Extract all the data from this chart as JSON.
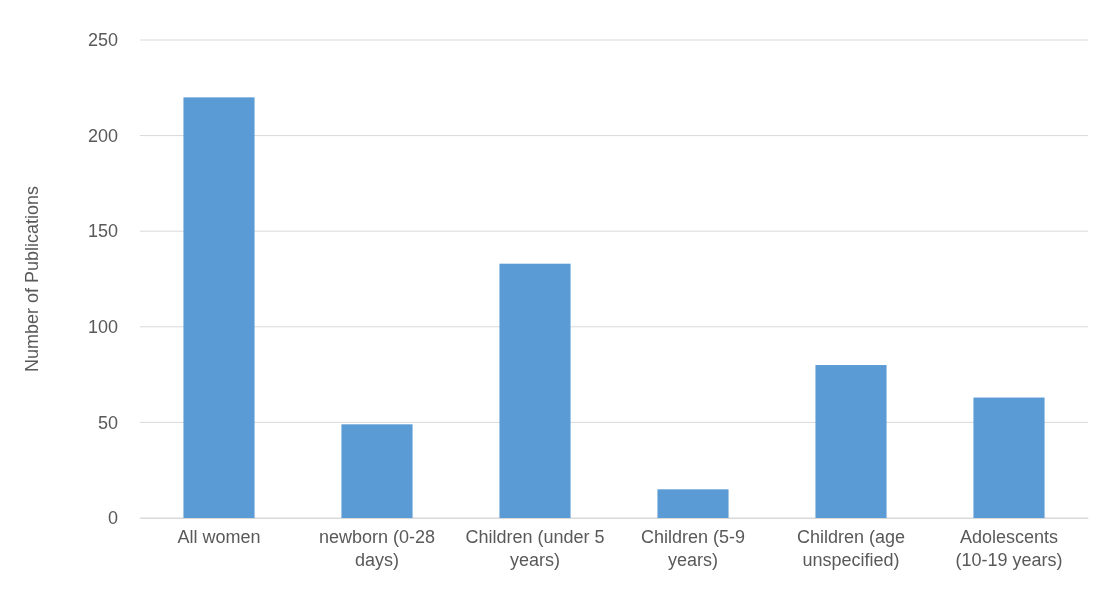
{
  "chart_data": {
    "type": "bar",
    "ylabel": "Number of Publications",
    "categories": [
      "All women",
      "newborn (0-28 days)",
      "Children (under 5 years)",
      "Children (5-9 years)",
      "Children (age unspecified)",
      "Adolescents (10-19 years)"
    ],
    "values": [
      220,
      49,
      133,
      15,
      80,
      63
    ],
    "color": "#5b9bd5",
    "ylim": [
      0,
      250
    ],
    "yticks": [
      0,
      50,
      100,
      150,
      200,
      250
    ],
    "grid": "y"
  }
}
